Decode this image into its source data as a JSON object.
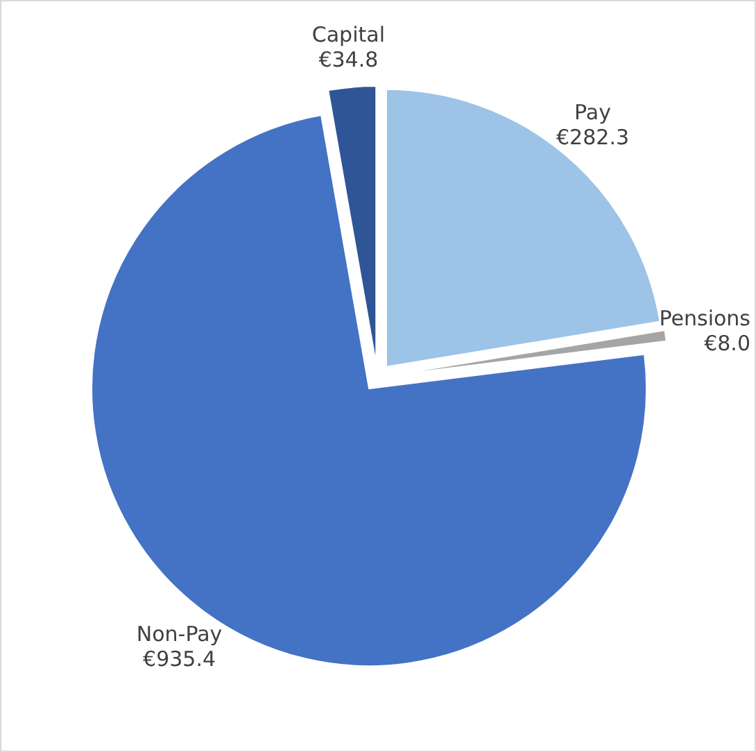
{
  "chart_data": {
    "type": "pie",
    "categories": [
      "Pay",
      "Pensions",
      "Non-Pay",
      "Capital"
    ],
    "values": [
      282.3,
      8.0,
      935.4,
      34.8
    ],
    "colors": [
      "#9dc3e6",
      "#a5a5a5",
      "#4472c4",
      "#2f5597"
    ],
    "value_labels": [
      "€282.3",
      "€8.0",
      "€935.4",
      "€34.8"
    ]
  }
}
